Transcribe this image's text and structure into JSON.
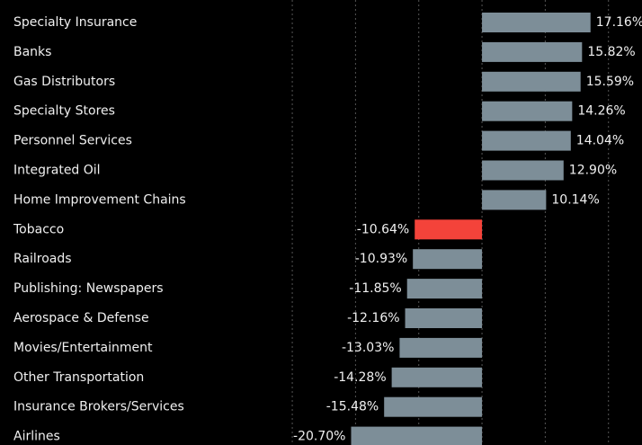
{
  "chart_data": {
    "type": "barh",
    "categories": [
      "Specialty Insurance",
      "Banks",
      "Gas Distributors",
      "Specialty Stores",
      "Personnel Services",
      "Integrated Oil",
      "Home Improvement Chains",
      "Tobacco",
      "Railroads",
      "Publishing: Newspapers",
      "Aerospace & Defense",
      "Movies/Entertainment",
      "Other Transportation",
      "Insurance Brokers/Services",
      "Airlines"
    ],
    "values": [
      17.16,
      15.82,
      15.59,
      14.26,
      14.04,
      12.9,
      10.14,
      -10.64,
      -10.93,
      -11.85,
      -12.16,
      -13.03,
      -14.28,
      -15.48,
      -20.7
    ],
    "value_labels": [
      "17.16%",
      "15.82%",
      "15.59%",
      "14.26%",
      "14.04%",
      "12.90%",
      "10.14%",
      "-10.64%",
      "-10.93%",
      "-11.85%",
      "-12.16%",
      "-13.03%",
      "-14.28%",
      "-15.48%",
      "-20.70%"
    ],
    "colors": [
      "#7d8e98",
      "#7d8e98",
      "#7d8e98",
      "#7d8e98",
      "#7d8e98",
      "#7d8e98",
      "#7d8e98",
      "#f4433a",
      "#7d8e98",
      "#7d8e98",
      "#7d8e98",
      "#7d8e98",
      "#7d8e98",
      "#7d8e98",
      "#7d8e98"
    ],
    "xlim": [
      -32,
      25.3
    ],
    "xticks": [
      -30,
      -20,
      -10,
      0,
      10,
      20
    ],
    "grid": true
  }
}
